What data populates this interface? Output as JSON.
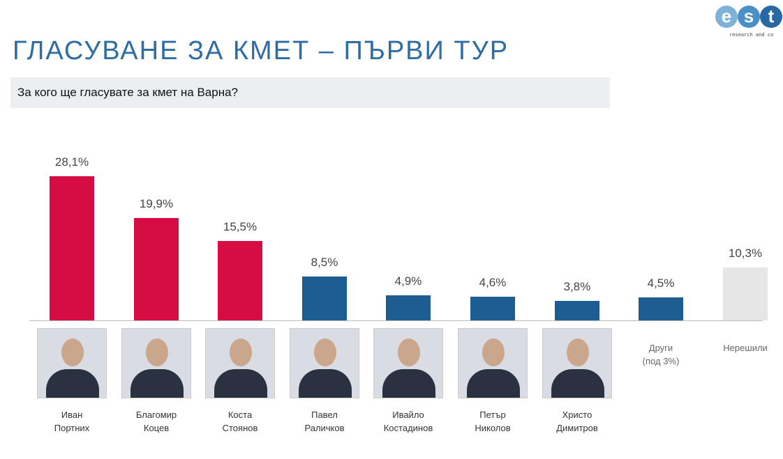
{
  "title": "ГЛАСУВАНЕ ЗА КМЕТ – ПЪРВИ ТУР",
  "question": "За кого ще гласувате за кмет на Варна?",
  "logo": {
    "text": "est",
    "tagline": "research and co"
  },
  "chart_data": {
    "type": "bar",
    "title": "За кого ще гласувате за кмет на Варна?",
    "categories": [
      "Иван Портних",
      "Благомир Коцев",
      "Коста Стоянов",
      "Павел Раличков",
      "Ивайло Костадинов",
      "Петър Николов",
      "Христо Димитров",
      "Други (под 3%)",
      "Нерешили"
    ],
    "label_lines": [
      [
        "Иван",
        "Портних"
      ],
      [
        "Благомир",
        "Коцев"
      ],
      [
        "Коста",
        "Стоянов"
      ],
      [
        "Павел",
        "Раличков"
      ],
      [
        "Ивайло",
        "Костадинов"
      ],
      [
        "Петър",
        "Николов"
      ],
      [
        "Христо",
        "Димитров"
      ],
      [
        "Други",
        "(под 3%)"
      ],
      [
        "Нерешили",
        ""
      ]
    ],
    "values": [
      28.1,
      19.9,
      15.5,
      8.5,
      4.9,
      4.6,
      3.8,
      4.5,
      10.3
    ],
    "value_labels": [
      "28,1%",
      "19,9%",
      "15,5%",
      "8,5%",
      "4,9%",
      "4,6%",
      "3,8%",
      "4,5%",
      "10,3%"
    ],
    "colors": [
      "#d50d43",
      "#d50d43",
      "#d50d43",
      "#1d5d91",
      "#1d5d91",
      "#1d5d91",
      "#1d5d91",
      "#1d5d91",
      "#e6e6e6"
    ],
    "has_photo": [
      true,
      true,
      true,
      true,
      true,
      true,
      true,
      false,
      false
    ],
    "ylim": [
      0,
      30
    ],
    "grid": false,
    "legend": "none"
  }
}
